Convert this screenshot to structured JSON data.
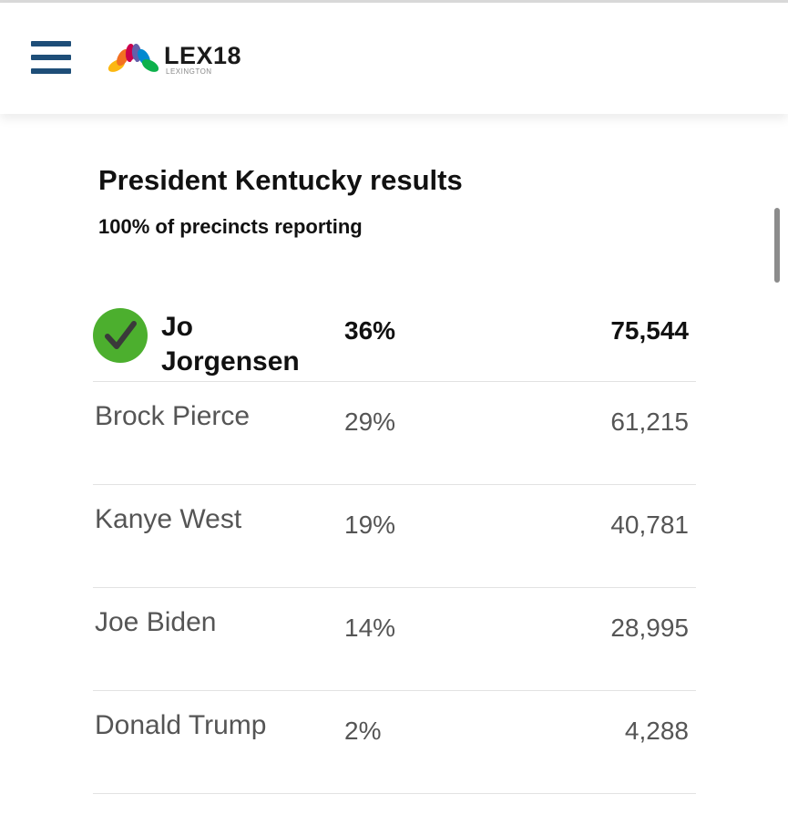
{
  "header": {
    "logo_text": "LEX18",
    "logo_sub": "LEXINGTON",
    "accent_color": "#1e4e78"
  },
  "results": {
    "title": "President Kentucky results",
    "subtitle": "100% of precincts reporting",
    "winner_color": "#4caf2e",
    "rows": [
      {
        "name": "Jo Jorgensen",
        "pct": "36%",
        "votes": "75,544",
        "winner": true
      },
      {
        "name": "Brock Pierce",
        "pct": "29%",
        "votes": "61,215",
        "winner": false
      },
      {
        "name": "Kanye West",
        "pct": "19%",
        "votes": "40,781",
        "winner": false
      },
      {
        "name": "Joe Biden",
        "pct": "14%",
        "votes": "28,995",
        "winner": false
      },
      {
        "name": "Donald Trump",
        "pct": "2%",
        "votes": "4,288",
        "winner": false
      }
    ]
  }
}
